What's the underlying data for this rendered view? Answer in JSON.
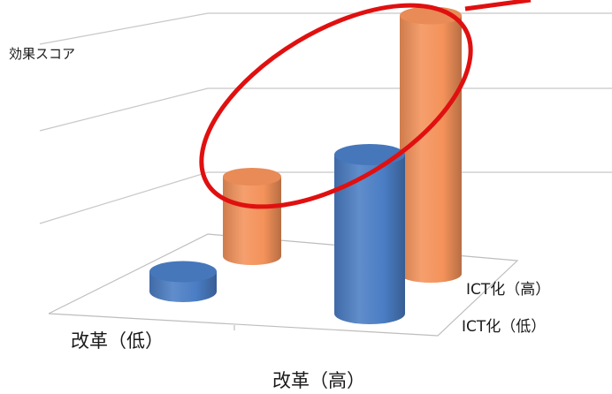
{
  "chart_data": {
    "type": "bar",
    "style": "3d-cylinder",
    "ylabel": "効果スコア",
    "x_categories": [
      "改革（低）",
      "改革（高）"
    ],
    "depth_categories": [
      "ICT化（低）",
      "ICT化（高）"
    ],
    "series": [
      {
        "name": "ICT化（低）",
        "color": "#4a7dc4",
        "values": [
          0.5,
          4.0
        ]
      },
      {
        "name": "ICT化（高）",
        "color": "#f4925a",
        "values": [
          2.0,
          6.5
        ]
      }
    ],
    "ylim": [
      0,
      7
    ],
    "grid": true,
    "legend": "none",
    "annotation": {
      "shape": "ellipse",
      "color": "#e01010",
      "highlights": "ICT化（高）"
    }
  }
}
